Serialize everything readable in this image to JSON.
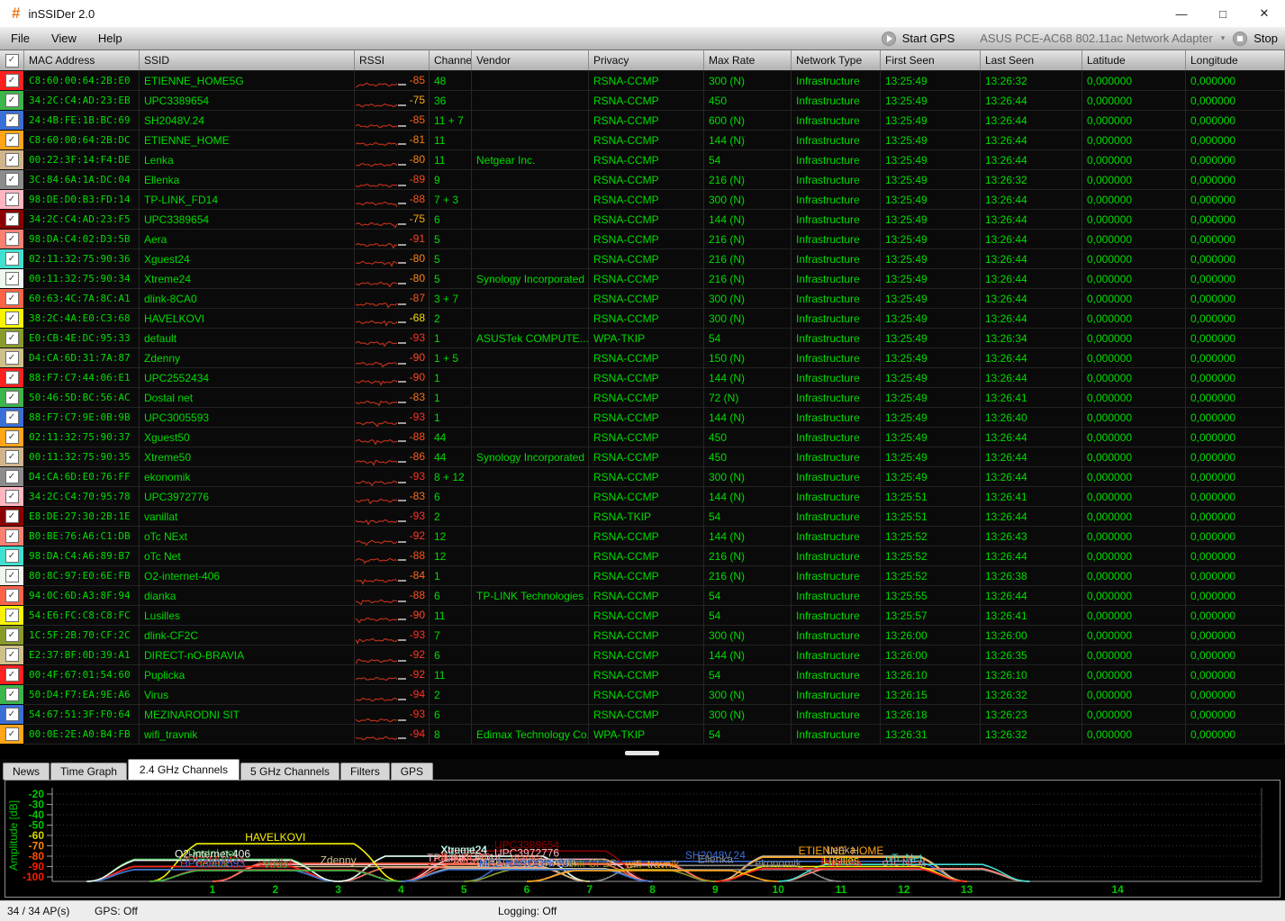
{
  "window": {
    "title": "inSSIDer 2.0",
    "logo_glyph": "#",
    "controls": {
      "minimize": "—",
      "maximize": "□",
      "close": "✕"
    }
  },
  "menu": {
    "items": [
      "File",
      "View",
      "Help"
    ]
  },
  "toolbar": {
    "start_gps_label": "Start GPS",
    "adapter": "ASUS PCE-AC68 802.11ac Network Adapter",
    "stop_label": "Stop"
  },
  "table": {
    "columns": [
      "MAC Address",
      "SSID",
      "RSSI",
      "Channel",
      "Vendor",
      "Privacy",
      "Max Rate",
      "Network Type",
      "First Seen",
      "Last Seen",
      "Latitude",
      "Longitude"
    ],
    "rows": [
      {
        "mac": "C8:60:00:64:2B:E0",
        "ssid": "ETIENNE_HOME5G",
        "rssi": -85,
        "channel": "48",
        "vendor": "",
        "privacy": "RSNA-CCMP",
        "max_rate": "300 (N)",
        "network_type": "Infrastructure",
        "first_seen": "13:25:49",
        "last_seen": "13:26:32",
        "latitude": "0,000000",
        "longitude": "0,000000",
        "color": "#ff2020"
      },
      {
        "mac": "34:2C:C4:AD:23:EB",
        "ssid": "UPC3389654",
        "rssi": -75,
        "channel": "36",
        "vendor": "",
        "privacy": "RSNA-CCMP",
        "max_rate": "450",
        "network_type": "Infrastructure",
        "first_seen": "13:25:49",
        "last_seen": "13:26:44",
        "latitude": "0,000000",
        "longitude": "0,000000",
        "color": "#3cb54a"
      },
      {
        "mac": "24:4B:FE:1B:BC:69",
        "ssid": "SH2048V.24",
        "rssi": -85,
        "channel": "11 + 7",
        "vendor": "",
        "privacy": "RSNA-CCMP",
        "max_rate": "600 (N)",
        "network_type": "Infrastructure",
        "first_seen": "13:25:49",
        "last_seen": "13:26:44",
        "latitude": "0,000000",
        "longitude": "0,000000",
        "color": "#3a6fd8"
      },
      {
        "mac": "C8:60:00:64:2B:DC",
        "ssid": "ETIENNE_HOME",
        "rssi": -81,
        "channel": "11",
        "vendor": "",
        "privacy": "RSNA-CCMP",
        "max_rate": "144 (N)",
        "network_type": "Infrastructure",
        "first_seen": "13:25:49",
        "last_seen": "13:26:44",
        "latitude": "0,000000",
        "longitude": "0,000000",
        "color": "#ffa517"
      },
      {
        "mac": "00:22:3F:14:F4:DE",
        "ssid": "Lenka",
        "rssi": -80,
        "channel": "11",
        "vendor": "Netgear Inc.",
        "privacy": "RSNA-CCMP",
        "max_rate": "54",
        "network_type": "Infrastructure",
        "first_seen": "13:25:49",
        "last_seen": "13:26:44",
        "latitude": "0,000000",
        "longitude": "0,000000",
        "color": "#d2b48c"
      },
      {
        "mac": "3C:84:6A:1A:DC:04",
        "ssid": "Ellenka",
        "rssi": -89,
        "channel": "9",
        "vendor": "",
        "privacy": "RSNA-CCMP",
        "max_rate": "216 (N)",
        "network_type": "Infrastructure",
        "first_seen": "13:25:49",
        "last_seen": "13:26:32",
        "latitude": "0,000000",
        "longitude": "0,000000",
        "color": "#8c8c8c"
      },
      {
        "mac": "98:DE:D0:B3:FD:14",
        "ssid": "TP-LINK_FD14",
        "rssi": -88,
        "channel": "7 + 3",
        "vendor": "",
        "privacy": "RSNA-CCMP",
        "max_rate": "300 (N)",
        "network_type": "Infrastructure",
        "first_seen": "13:25:49",
        "last_seen": "13:26:44",
        "latitude": "0,000000",
        "longitude": "0,000000",
        "color": "#ffb6c1"
      },
      {
        "mac": "34:2C:C4:AD:23:F5",
        "ssid": "UPC3389654",
        "rssi": -75,
        "channel": "6",
        "vendor": "",
        "privacy": "RSNA-CCMP",
        "max_rate": "144 (N)",
        "network_type": "Infrastructure",
        "first_seen": "13:25:49",
        "last_seen": "13:26:44",
        "latitude": "0,000000",
        "longitude": "0,000000",
        "color": "#8b0000"
      },
      {
        "mac": "98:DA:C4:02:D3:5B",
        "ssid": "Aera",
        "rssi": -91,
        "channel": "5",
        "vendor": "",
        "privacy": "RSNA-CCMP",
        "max_rate": "216 (N)",
        "network_type": "Infrastructure",
        "first_seen": "13:25:49",
        "last_seen": "13:26:44",
        "latitude": "0,000000",
        "longitude": "0,000000",
        "color": "#fa8072"
      },
      {
        "mac": "02:11:32:75:90:36",
        "ssid": "Xguest24",
        "rssi": -80,
        "channel": "5",
        "vendor": "",
        "privacy": "RSNA-CCMP",
        "max_rate": "216 (N)",
        "network_type": "Infrastructure",
        "first_seen": "13:25:49",
        "last_seen": "13:26:44",
        "latitude": "0,000000",
        "longitude": "0,000000",
        "color": "#40e0d0"
      },
      {
        "mac": "00:11:32:75:90:34",
        "ssid": "Xtreme24",
        "rssi": -80,
        "channel": "5",
        "vendor": "Synology Incorporated",
        "privacy": "RSNA-CCMP",
        "max_rate": "216 (N)",
        "network_type": "Infrastructure",
        "first_seen": "13:25:49",
        "last_seen": "13:26:44",
        "latitude": "0,000000",
        "longitude": "0,000000",
        "color": "#eef7ee"
      },
      {
        "mac": "60:63:4C:7A:8C:A1",
        "ssid": "dlink-8CA0",
        "rssi": -87,
        "channel": "3 + 7",
        "vendor": "",
        "privacy": "RSNA-CCMP",
        "max_rate": "300 (N)",
        "network_type": "Infrastructure",
        "first_seen": "13:25:49",
        "last_seen": "13:26:44",
        "latitude": "0,000000",
        "longitude": "0,000000",
        "color": "#ff6347"
      },
      {
        "mac": "38:2C:4A:E0:C3:68",
        "ssid": "HAVELKOVI",
        "rssi": -68,
        "channel": "2",
        "vendor": "",
        "privacy": "RSNA-CCMP",
        "max_rate": "300 (N)",
        "network_type": "Infrastructure",
        "first_seen": "13:25:49",
        "last_seen": "13:26:44",
        "latitude": "0,000000",
        "longitude": "0,000000",
        "color": "#f6f200"
      },
      {
        "mac": "E0:CB:4E:DC:95:33",
        "ssid": "default",
        "rssi": -93,
        "channel": "1",
        "vendor": "ASUSTek COMPUTE...",
        "privacy": "WPA-TKIP",
        "max_rate": "54",
        "network_type": "Infrastructure",
        "first_seen": "13:25:49",
        "last_seen": "13:26:34",
        "latitude": "0,000000",
        "longitude": "0,000000",
        "color": "#8a9a2a"
      },
      {
        "mac": "D4:CA:6D:31:7A:87",
        "ssid": "Zdenny",
        "rssi": -90,
        "channel": "1 + 5",
        "vendor": "",
        "privacy": "RSNA-CCMP",
        "max_rate": "150 (N)",
        "network_type": "Infrastructure",
        "first_seen": "13:25:49",
        "last_seen": "13:26:44",
        "latitude": "0,000000",
        "longitude": "0,000000",
        "color": "#cfc08a"
      },
      {
        "mac": "88:F7:C7:44:06:E1",
        "ssid": "UPC2552434",
        "rssi": -90,
        "channel": "1",
        "vendor": "",
        "privacy": "RSNA-CCMP",
        "max_rate": "144 (N)",
        "network_type": "Infrastructure",
        "first_seen": "13:25:49",
        "last_seen": "13:26:44",
        "latitude": "0,000000",
        "longitude": "0,000000",
        "color": "#ff2020"
      },
      {
        "mac": "50:46:5D:BC:56:AC",
        "ssid": "Dostal net",
        "rssi": -83,
        "channel": "1",
        "vendor": "",
        "privacy": "RSNA-CCMP",
        "max_rate": "72 (N)",
        "network_type": "Infrastructure",
        "first_seen": "13:25:49",
        "last_seen": "13:26:41",
        "latitude": "0,000000",
        "longitude": "0,000000",
        "color": "#3cb54a"
      },
      {
        "mac": "88:F7:C7:9E:0B:9B",
        "ssid": "UPC3005593",
        "rssi": -93,
        "channel": "1",
        "vendor": "",
        "privacy": "RSNA-CCMP",
        "max_rate": "144 (N)",
        "network_type": "Infrastructure",
        "first_seen": "13:25:49",
        "last_seen": "13:26:40",
        "latitude": "0,000000",
        "longitude": "0,000000",
        "color": "#3a6fd8"
      },
      {
        "mac": "02:11:32:75:90:37",
        "ssid": "Xguest50",
        "rssi": -88,
        "channel": "44",
        "vendor": "",
        "privacy": "RSNA-CCMP",
        "max_rate": "450",
        "network_type": "Infrastructure",
        "first_seen": "13:25:49",
        "last_seen": "13:26:44",
        "latitude": "0,000000",
        "longitude": "0,000000",
        "color": "#ffa517"
      },
      {
        "mac": "00:11:32:75:90:35",
        "ssid": "Xtreme50",
        "rssi": -86,
        "channel": "44",
        "vendor": "Synology Incorporated",
        "privacy": "RSNA-CCMP",
        "max_rate": "450",
        "network_type": "Infrastructure",
        "first_seen": "13:25:49",
        "last_seen": "13:26:44",
        "latitude": "0,000000",
        "longitude": "0,000000",
        "color": "#d2b48c"
      },
      {
        "mac": "D4:CA:6D:E0:76:FF",
        "ssid": "ekonomik",
        "rssi": -93,
        "channel": "8 + 12",
        "vendor": "",
        "privacy": "RSNA-CCMP",
        "max_rate": "300 (N)",
        "network_type": "Infrastructure",
        "first_seen": "13:25:49",
        "last_seen": "13:26:44",
        "latitude": "0,000000",
        "longitude": "0,000000",
        "color": "#8c8c8c"
      },
      {
        "mac": "34:2C:C4:70:95:78",
        "ssid": "UPC3972776",
        "rssi": -83,
        "channel": "6",
        "vendor": "",
        "privacy": "RSNA-CCMP",
        "max_rate": "144 (N)",
        "network_type": "Infrastructure",
        "first_seen": "13:25:51",
        "last_seen": "13:26:41",
        "latitude": "0,000000",
        "longitude": "0,000000",
        "color": "#ffb6c1"
      },
      {
        "mac": "E8:DE:27:30:2B:1E",
        "ssid": "vanillat",
        "rssi": -93,
        "channel": "2",
        "vendor": "",
        "privacy": "RSNA-TKIP",
        "max_rate": "54",
        "network_type": "Infrastructure",
        "first_seen": "13:25:51",
        "last_seen": "13:26:44",
        "latitude": "0,000000",
        "longitude": "0,000000",
        "color": "#8b0000"
      },
      {
        "mac": "B0:BE:76:A6:C1:DB",
        "ssid": "oTc NExt",
        "rssi": -92,
        "channel": "12",
        "vendor": "",
        "privacy": "RSNA-CCMP",
        "max_rate": "144 (N)",
        "network_type": "Infrastructure",
        "first_seen": "13:25:52",
        "last_seen": "13:26:43",
        "latitude": "0,000000",
        "longitude": "0,000000",
        "color": "#fa8072"
      },
      {
        "mac": "98:DA:C4:A6:89:B7",
        "ssid": "oTc Net",
        "rssi": -88,
        "channel": "12",
        "vendor": "",
        "privacy": "RSNA-CCMP",
        "max_rate": "216 (N)",
        "network_type": "Infrastructure",
        "first_seen": "13:25:52",
        "last_seen": "13:26:44",
        "latitude": "0,000000",
        "longitude": "0,000000",
        "color": "#40e0d0"
      },
      {
        "mac": "80:8C:97:E0:6E:FB",
        "ssid": "O2-internet-406",
        "rssi": -84,
        "channel": "1",
        "vendor": "",
        "privacy": "RSNA-CCMP",
        "max_rate": "216 (N)",
        "network_type": "Infrastructure",
        "first_seen": "13:25:52",
        "last_seen": "13:26:38",
        "latitude": "0,000000",
        "longitude": "0,000000",
        "color": "#eef7ee"
      },
      {
        "mac": "94:0C:6D:A3:8F:94",
        "ssid": "dianka",
        "rssi": -88,
        "channel": "6",
        "vendor": "TP-LINK Technologies ...",
        "privacy": "RSNA-CCMP",
        "max_rate": "54",
        "network_type": "Infrastructure",
        "first_seen": "13:25:55",
        "last_seen": "13:26:44",
        "latitude": "0,000000",
        "longitude": "0,000000",
        "color": "#ff6347"
      },
      {
        "mac": "54:E6:FC:C8:C8:FC",
        "ssid": "Lusilles",
        "rssi": -90,
        "channel": "11",
        "vendor": "",
        "privacy": "RSNA-CCMP",
        "max_rate": "54",
        "network_type": "Infrastructure",
        "first_seen": "13:25:57",
        "last_seen": "13:26:41",
        "latitude": "0,000000",
        "longitude": "0,000000",
        "color": "#f6f200"
      },
      {
        "mac": "1C:5F:2B:70:CF:2C",
        "ssid": "dlink-CF2C",
        "rssi": -93,
        "channel": "7",
        "vendor": "",
        "privacy": "RSNA-CCMP",
        "max_rate": "300 (N)",
        "network_type": "Infrastructure",
        "first_seen": "13:26:00",
        "last_seen": "13:26:00",
        "latitude": "0,000000",
        "longitude": "0,000000",
        "color": "#8a9a2a"
      },
      {
        "mac": "E2:37:BF:0D:39:A1",
        "ssid": "DIRECT-nO-BRAVIA",
        "rssi": -92,
        "channel": "6",
        "vendor": "",
        "privacy": "RSNA-CCMP",
        "max_rate": "144 (N)",
        "network_type": "Infrastructure",
        "first_seen": "13:26:00",
        "last_seen": "13:26:35",
        "latitude": "0,000000",
        "longitude": "0,000000",
        "color": "#cfc08a"
      },
      {
        "mac": "00:4F:67:01:54:60",
        "ssid": "Puplicka",
        "rssi": -92,
        "channel": "11",
        "vendor": "",
        "privacy": "RSNA-CCMP",
        "max_rate": "54",
        "network_type": "Infrastructure",
        "first_seen": "13:26:10",
        "last_seen": "13:26:10",
        "latitude": "0,000000",
        "longitude": "0,000000",
        "color": "#ff2020"
      },
      {
        "mac": "50:D4:F7:EA:9E:A6",
        "ssid": "Virus",
        "rssi": -94,
        "channel": "2",
        "vendor": "",
        "privacy": "RSNA-CCMP",
        "max_rate": "300 (N)",
        "network_type": "Infrastructure",
        "first_seen": "13:26:15",
        "last_seen": "13:26:32",
        "latitude": "0,000000",
        "longitude": "0,000000",
        "color": "#3cb54a"
      },
      {
        "mac": "54:67:51:3F:F0:64",
        "ssid": "MEZINARODNI SIT",
        "rssi": -93,
        "channel": "6",
        "vendor": "",
        "privacy": "RSNA-CCMP",
        "max_rate": "300 (N)",
        "network_type": "Infrastructure",
        "first_seen": "13:26:18",
        "last_seen": "13:26:23",
        "latitude": "0,000000",
        "longitude": "0,000000",
        "color": "#3a6fd8"
      },
      {
        "mac": "00:0E:2E:A0:B4:FB",
        "ssid": "wifi_travnik",
        "rssi": -94,
        "channel": "8",
        "vendor": "Edimax Technology Co...",
        "privacy": "WPA-TKIP",
        "max_rate": "54",
        "network_type": "Infrastructure",
        "first_seen": "13:26:31",
        "last_seen": "13:26:32",
        "latitude": "0,000000",
        "longitude": "0,000000",
        "color": "#ffa517"
      }
    ]
  },
  "tabs": {
    "items": [
      "News",
      "Time Graph",
      "2.4 GHz Channels",
      "5 GHz Channels",
      "Filters",
      "GPS"
    ],
    "active": "2.4 GHz Channels"
  },
  "chart_data": {
    "type": "area",
    "title": "2.4 GHz Channels",
    "ylabel": "Amplitude [dB]",
    "ylim": [
      -100,
      -20
    ],
    "y_ticks": [
      -20,
      -30,
      -40,
      -50,
      -60,
      -70,
      -80,
      -90,
      -100
    ],
    "x_ticks": [
      1,
      2,
      3,
      4,
      5,
      6,
      7,
      8,
      9,
      10,
      11,
      12,
      13,
      14
    ],
    "grid": "dotted",
    "series": [
      {
        "name": "SH2048V.24",
        "channel": "11 + 7",
        "rssi": -85,
        "color": "#3a6fd8"
      },
      {
        "name": "ETIENNE_HOME",
        "channel": "11",
        "rssi": -81,
        "color": "#ffa517"
      },
      {
        "name": "Lenka",
        "channel": "11",
        "rssi": -80,
        "color": "#d2b48c"
      },
      {
        "name": "Ellenka",
        "channel": "9",
        "rssi": -89,
        "color": "#8c8c8c"
      },
      {
        "name": "TP-LINK_FD14",
        "channel": "7 + 3",
        "rssi": -88,
        "color": "#ffb6c1"
      },
      {
        "name": "UPC3389654",
        "channel": "6",
        "rssi": -75,
        "color": "#8b0000"
      },
      {
        "name": "Aera",
        "channel": "5",
        "rssi": -91,
        "color": "#fa8072"
      },
      {
        "name": "Xguest24",
        "channel": "5",
        "rssi": -80,
        "color": "#40e0d0"
      },
      {
        "name": "Xtreme24",
        "channel": "5",
        "rssi": -80,
        "color": "#eef7ee"
      },
      {
        "name": "dlink-8CA0",
        "channel": "3 + 7",
        "rssi": -87,
        "color": "#ff6347"
      },
      {
        "name": "HAVELKOVI",
        "channel": "2",
        "rssi": -68,
        "color": "#f6f200"
      },
      {
        "name": "default",
        "channel": "1",
        "rssi": -93,
        "color": "#8a9a2a"
      },
      {
        "name": "Zdenny",
        "channel": "1 + 5",
        "rssi": -90,
        "color": "#cfc08a"
      },
      {
        "name": "UPC2552434",
        "channel": "1",
        "rssi": -90,
        "color": "#ff2020"
      },
      {
        "name": "Dostal net",
        "channel": "1",
        "rssi": -83,
        "color": "#3cb54a"
      },
      {
        "name": "UPC3005593",
        "channel": "1",
        "rssi": -93,
        "color": "#3a6fd8"
      },
      {
        "name": "ekonomik",
        "channel": "8 + 12",
        "rssi": -93,
        "color": "#8c8c8c"
      },
      {
        "name": "UPC3972776",
        "channel": "6",
        "rssi": -83,
        "color": "#ffb6c1"
      },
      {
        "name": "vanillat",
        "channel": "2",
        "rssi": -93,
        "color": "#c03030"
      },
      {
        "name": "oTc NExt",
        "channel": "12",
        "rssi": -92,
        "color": "#fa8072"
      },
      {
        "name": "oTc Net",
        "channel": "12",
        "rssi": -88,
        "color": "#40e0d0"
      },
      {
        "name": "O2-internet-406",
        "channel": "1",
        "rssi": -84,
        "color": "#eef7ee"
      },
      {
        "name": "dianka",
        "channel": "6",
        "rssi": -88,
        "color": "#ff6347"
      },
      {
        "name": "Lusilles",
        "channel": "11",
        "rssi": -90,
        "color": "#f6f200"
      },
      {
        "name": "dlink-CF2C",
        "channel": "7",
        "rssi": -93,
        "color": "#8a9a2a"
      },
      {
        "name": "DIRECT-nO-BRAVIA",
        "channel": "6",
        "rssi": -92,
        "color": "#cfc08a"
      },
      {
        "name": "Puplicka",
        "channel": "11",
        "rssi": -92,
        "color": "#ff2020"
      },
      {
        "name": "Virus",
        "channel": "2",
        "rssi": -94,
        "color": "#3cb54a"
      },
      {
        "name": "MEZINARODNI SIT",
        "channel": "6",
        "rssi": -93,
        "color": "#3a6fd8"
      },
      {
        "name": "wifi_travnik",
        "channel": "8",
        "rssi": -94,
        "color": "#ffa517"
      }
    ],
    "tick_colors": {
      "-20": "#00c800",
      "-30": "#00c800",
      "-40": "#00c800",
      "-50": "#00c800",
      "-60": "#d8d800",
      "-70": "#ff8c00",
      "-80": "#ff4e00",
      "-90": "#ff1e00",
      "-100": "#ff1e00",
      "axis": "#00c800"
    }
  },
  "status": {
    "ap_count": "34 / 34 AP(s)",
    "gps": "GPS: Off",
    "logging": "Logging: Off"
  }
}
